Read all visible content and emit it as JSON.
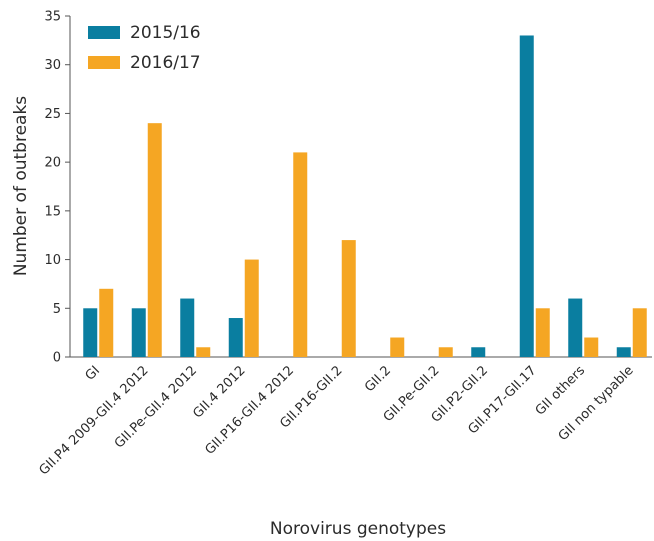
{
  "chart_data": {
    "type": "bar",
    "xlabel": "Norovirus genotypes",
    "ylabel": "Number of outbreaks",
    "ylim": [
      0,
      35
    ],
    "yticks": [
      0,
      5,
      10,
      15,
      20,
      25,
      30,
      35
    ],
    "grid": false,
    "legend_position": "top-left",
    "categories": [
      "GI",
      "GII.P4 2009-GII.4 2012",
      "GII.Pe-GII.4 2012",
      "GII.4 2012",
      "GII.P16-GII.4 2012",
      "GII.P16-GII.2",
      "GII.2",
      "GII.Pe-GII.2",
      "GII.P2-GII.2",
      "GII.P17-GII.17",
      "GII others",
      "GII non typable"
    ],
    "series": [
      {
        "name": "2015/16",
        "color": "#0a7ea0",
        "values": [
          5,
          5,
          6,
          4,
          0,
          0,
          0,
          0,
          1,
          33,
          6,
          1
        ]
      },
      {
        "name": "2016/17",
        "color": "#f5a623",
        "values": [
          7,
          24,
          1,
          10,
          21,
          12,
          2,
          1,
          0,
          5,
          2,
          5
        ]
      }
    ]
  }
}
